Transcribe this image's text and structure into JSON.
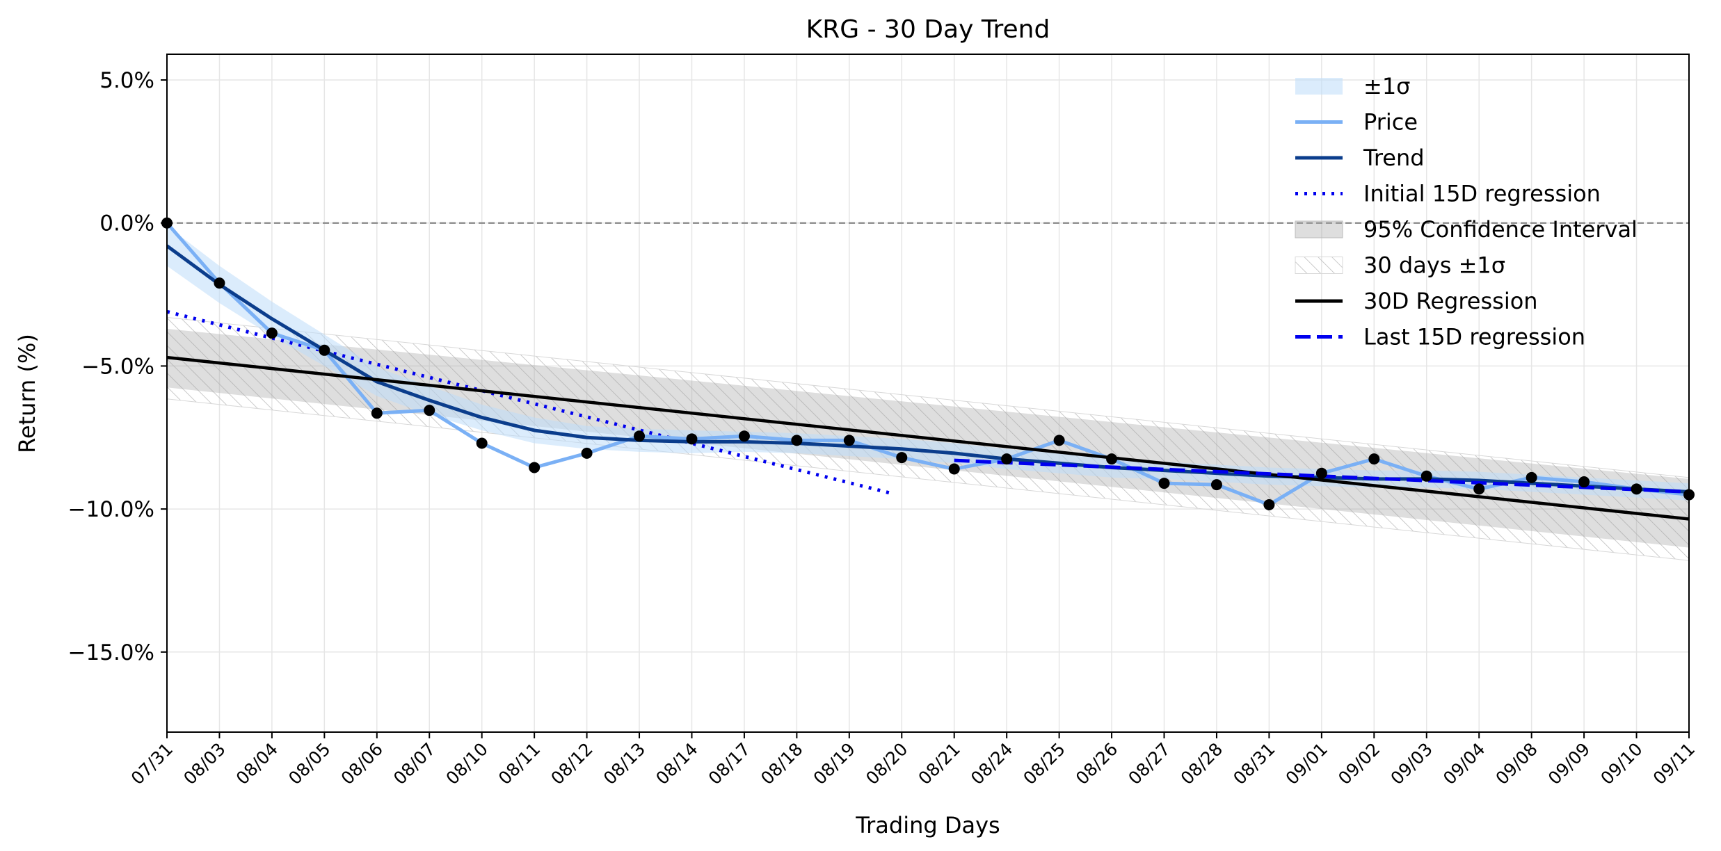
{
  "chart_data": {
    "type": "line",
    "title": "KRG - 30 Day Trend",
    "xlabel": "Trading Days",
    "ylabel": "Return (%)",
    "ylim": [
      -17.8,
      5.9
    ],
    "yticks": [
      5,
      0,
      -5,
      -10,
      -15
    ],
    "ytick_labels": [
      "5.0%",
      "0.0%",
      "−5.0%",
      "−10.0%",
      "−15.0%"
    ],
    "categories": [
      "07/31",
      "08/03",
      "08/04",
      "08/05",
      "08/06",
      "08/07",
      "08/10",
      "08/11",
      "08/12",
      "08/13",
      "08/14",
      "08/17",
      "08/18",
      "08/19",
      "08/20",
      "08/21",
      "08/24",
      "08/25",
      "08/26",
      "08/27",
      "08/28",
      "08/31",
      "09/01",
      "09/02",
      "09/03",
      "09/04",
      "09/08",
      "09/09",
      "09/10",
      "09/11"
    ],
    "grid": true,
    "legend_position": "upper-right",
    "reference_line": 0,
    "series": [
      {
        "name": "Price",
        "color": "#7ab0f5",
        "style": "solid",
        "values": [
          0.0,
          -2.1,
          -3.85,
          -4.45,
          -6.65,
          -6.55,
          -7.7,
          -8.55,
          -8.05,
          -7.45,
          -7.55,
          -7.45,
          -7.6,
          -7.6,
          -8.2,
          -8.6,
          -8.25,
          -7.6,
          -8.25,
          -9.1,
          -9.15,
          -9.85,
          -8.75,
          -8.25,
          -8.85,
          -9.3,
          -8.9,
          -9.05,
          -9.3,
          -9.5
        ]
      },
      {
        "name": "Trend",
        "color": "#0b3d8c",
        "style": "solid",
        "values": [
          -0.8,
          -2.15,
          -3.35,
          -4.45,
          -5.55,
          -6.2,
          -6.8,
          -7.25,
          -7.5,
          -7.6,
          -7.65,
          -7.65,
          -7.7,
          -7.8,
          -7.9,
          -8.05,
          -8.25,
          -8.4,
          -8.55,
          -8.65,
          -8.75,
          -8.85,
          -8.9,
          -8.95,
          -8.95,
          -9.0,
          -9.1,
          -9.2,
          -9.3,
          -9.4
        ]
      },
      {
        "name": "Initial 15D regression",
        "color": "#0000ee",
        "style": "dotted",
        "x": [
          0,
          13.8
        ],
        "values": [
          -3.1,
          -9.45
        ]
      },
      {
        "name": "30D Regression",
        "color": "#000000",
        "style": "solid",
        "x": [
          0,
          29
        ],
        "values": [
          -4.7,
          -10.35
        ]
      },
      {
        "name": "Last 15D regression",
        "color": "#0000ee",
        "style": "dashed",
        "x": [
          15,
          29
        ],
        "values": [
          -8.3,
          -9.4
        ]
      }
    ],
    "bands": [
      {
        "name": "±1σ",
        "color": "#dcebfc",
        "around": "Trend",
        "halfwidth": [
          0.7,
          0.65,
          0.6,
          0.55,
          0.5,
          0.5,
          0.45,
          0.45,
          0.4,
          0.4,
          0.4,
          0.35,
          0.35,
          0.35,
          0.35,
          0.35,
          0.35,
          0.35,
          0.35,
          0.3,
          0.3,
          0.3,
          0.3,
          0.3,
          0.3,
          0.3,
          0.3,
          0.3,
          0.3,
          0.3
        ]
      },
      {
        "name": "95% Confidence Interval",
        "color": "#d0d0d0",
        "x": [
          0,
          29
        ],
        "upper": [
          -3.7,
          -8.95
        ],
        "lower": [
          -5.75,
          -11.35
        ]
      },
      {
        "name": "30 days ±1σ",
        "color": "#c8c8c8",
        "x": [
          0,
          29
        ],
        "upper": [
          -3.3,
          -8.9
        ],
        "lower": [
          -6.15,
          -11.8
        ]
      }
    ],
    "legend": [
      "±1σ",
      "Price",
      "Trend",
      "Initial 15D regression",
      "95% Confidence Interval",
      "30 days ±1σ",
      "30D Regression",
      "Last 15D regression"
    ]
  }
}
